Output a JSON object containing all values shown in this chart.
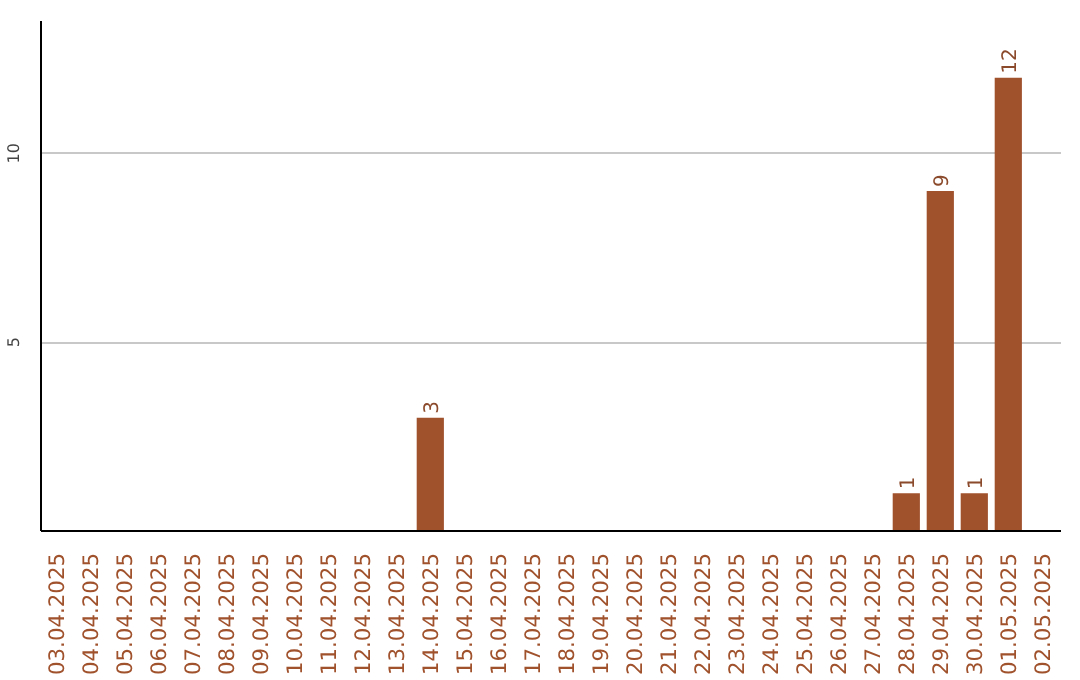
{
  "chart_data": {
    "type": "bar",
    "categories": [
      "03.04.2025",
      "04.04.2025",
      "05.04.2025",
      "06.04.2025",
      "07.04.2025",
      "08.04.2025",
      "09.04.2025",
      "10.04.2025",
      "11.04.2025",
      "12.04.2025",
      "13.04.2025",
      "14.04.2025",
      "15.04.2025",
      "16.04.2025",
      "17.04.2025",
      "18.04.2025",
      "19.04.2025",
      "20.04.2025",
      "21.04.2025",
      "22.04.2025",
      "23.04.2025",
      "24.04.2025",
      "25.04.2025",
      "26.04.2025",
      "27.04.2025",
      "28.04.2025",
      "29.04.2025",
      "30.04.2025",
      "01.05.2025",
      "02.05.2025"
    ],
    "values": [
      null,
      null,
      null,
      null,
      null,
      null,
      null,
      null,
      null,
      null,
      null,
      3,
      null,
      null,
      null,
      null,
      null,
      null,
      null,
      null,
      null,
      null,
      null,
      null,
      null,
      1,
      9,
      1,
      12,
      null
    ],
    "color": "#a0522d",
    "ylim": [
      0,
      13.5
    ],
    "yticks": [
      5,
      10
    ],
    "grid": "y",
    "data_labels": true
  }
}
